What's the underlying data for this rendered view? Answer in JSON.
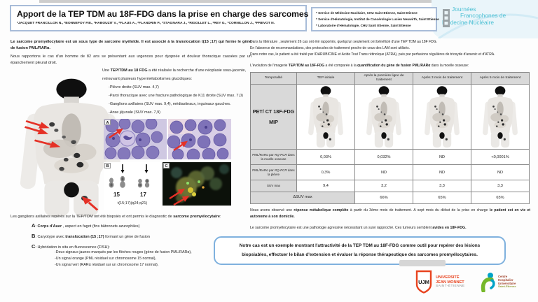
{
  "header": {
    "title": "Apport de la TEP TDM au 18F-FDG dans la prise en charge des sarcomes promyélocytaires",
    "authors": "*JACQUET FRANCILLON N., *BONNEFOY P.B., *HABOUZIT V., *FLAUS A., *FLANDRIN P., *STAGNARA J., *RIGOLLET L., *REY G., *CORNILLON J., *PREVOT N.",
    "affiliations": [
      "* Service de Médecine Nucléaire, CHU Saint Etienne, Saint Etienne",
      "* Service d'Hématologie, Institut de Cancérologie Lucien Neuwirth, Saint Etienne",
      "* Laboratoire d'Hématologie, CHU Saint Etienne, Saint Etienne"
    ],
    "congress_logo": {
      "line1": "Journées",
      "line2": "Francophones de",
      "line3": "Médecine Nucléaire"
    }
  },
  "left": {
    "intro_bold": "Le sarcome promyélocytaire est un sous type de sarcome myéloïde. Il est associé à la translocation t(15 ;17) qui forme le gène de fusion PML/RARα.",
    "case_text": "Nous rapportons le cas d'un homme de 82 ans se présentant aux urgences pour dyspnée et douleur thoracique causées par un épanchement pleural droit.",
    "tep_pre": "Une ",
    "tep_bold": "TEP/TDM au 18 FDG",
    "tep_post": " a été réalisée la recherche d'une néoplasie sous-jacente, retrouvant plusieurs hypermétabolismes glucidiques:",
    "findings": [
      "-Plèvre droite (SUV max. 4,7)",
      "-Paroi thoracique avec une fracture pathologique de K11 droite (SUV max. 7,0)",
      "-Ganglions axillaires (SUV max. 9,4), médiastinaux, inguinaux gauches.",
      "-Anse jéjunale (SUV max. 7,9)"
    ],
    "panel_a_label": "A",
    "panel_b_label": "B",
    "panel_c_label": "C",
    "karyotype": {
      "chr15": "15",
      "chr17": "17",
      "caption": "t(15;17)(q24;q21)"
    },
    "biopsy_pre": "Les ganglions axillaires repérés sur la TEP/TDM ont été biopsiés et ont permis le diagnostic de ",
    "biopsy_bold": "sarcome promyélocytaire",
    "biopsy_post": ":",
    "item_a": {
      "letter": "A",
      "pre": ": ",
      "bold": "Corps d'Auer",
      "post": " , aspect en fagot (fins bâtonnets azurophiles)"
    },
    "item_b": {
      "letter": "B",
      "pre": ": Caryotype avec ",
      "bold": "translocation (15 ;17)",
      "post": " formant un gène de fusion"
    },
    "item_c": {
      "letter": "C",
      "pre": ": ",
      "text": "Hybridation in situ en fluorescence (FISH):",
      "subitems": [
        "-Deux signaux jaunes marqués par les flèches rouges (gène de fusion PML/RARα),",
        "-Un signal orange (PML résiduel sur chromosome 15 normal),",
        "-Un signal vert (RARα résiduel sur un chromosome 17 normal),"
      ]
    }
  },
  "right": {
    "lit1": "Dans la littérature , seulement 26 cas ont été rapportés, quelqu'un seulement ont bénéficié d'une TEP TDM au 18F FDG.",
    "lit2": "En l'absence de recommandations, des protocoles de traitement proche de ceux des LAM sont utilisés.",
    "lit3": "Dans notre cas, le patient a été traité par IDARUBICINE et Acide Tout Trans rétinoïque (ATRA), puis par perfusions régulières de trioxyde d'arsenic et d'ATRA.",
    "evo_pre": "L'évolution de l'imagerie ",
    "evo_bold1": "TEP/TDM au 18F-FDG",
    "evo_mid": " a été comparée à la ",
    "evo_bold2": "quantification du gène de fusion PML/RARα",
    "evo_post": " dans la moelle osseuse:",
    "table": {
      "col_headers": [
        "Temporalité",
        "TEP initiale",
        "Après la première ligne de traitement",
        "Après 3 mois de traitement",
        "Après 5 mois de traitement"
      ],
      "modality_line1": "PET/ CT 18F-FDG",
      "modality_line2": "MIP",
      "row_marrow": {
        "pre": "PML/RARα par ",
        "it": "RQ-PCR",
        "post": " dans la moelle osseuse",
        "values": [
          "0,03%",
          "0,032%",
          "ND",
          "<0,0001%"
        ]
      },
      "row_pleura": {
        "pre": "PML/RARα par ",
        "it": "RQ-PCR",
        "post": " dans la plèvre",
        "values": [
          "0,3%",
          "ND",
          "ND",
          "ND"
        ]
      },
      "row_suv": {
        "label": "SUV max",
        "values": [
          "9,4",
          "3,2",
          "3,3",
          "3,3"
        ]
      },
      "row_dsuv": {
        "label": "ΔSUV max",
        "values": [
          "66%",
          "65%",
          "65%"
        ]
      }
    },
    "obs_pre": "Nous avons observé une ",
    "obs_bold1": "réponse métabolique complète",
    "obs_mid": " à partir du 3ème mois de traitement. A sept mois du début de la prise en charge ",
    "obs_bold2": "le patient est en vie et autonome à son domicile.",
    "agg_pre": "Le sarcome promyélocytaire est une pathologie agressive nécessitant un suivi rapproché. Ces tumeurs semblent ",
    "agg_bold": "avides en 18F-FDG.",
    "conclusion_l1": "Notre cas est un exemple montrant l'attractivité de la TEP TDM au 18F-FDG comme outil pour repérer des lésions",
    "conclusion_l2": "biopsiables, effectuer le bilan d'extension et évaluer la réponse thérapeutique des sarcomes promyélocytaires."
  },
  "footer": {
    "ujm": {
      "monogram": "UJM",
      "line1": "UNIVERSITÉ",
      "line2": "JEAN MONNET",
      "line3": "SAINT-ÉTIENNE"
    },
    "chu": {
      "line1": "Centre",
      "line2": "Hospitalier",
      "line3": "Universitaire",
      "line4": "Saint-Étienne"
    }
  },
  "colors": {
    "accent_blue": "#a8bcd8",
    "teal": "#4cc0d4",
    "arrow_red": "#e53126",
    "table_gray": "#d9d9d9",
    "ujm_red": "#e8431f",
    "chu_green": "#76b82a",
    "chu_blue": "#00a3c7"
  }
}
